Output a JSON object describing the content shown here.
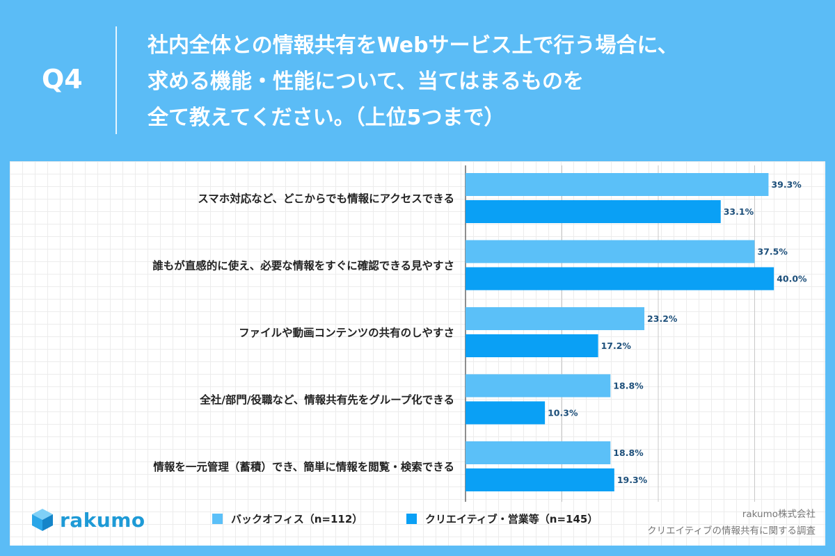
{
  "header": {
    "qnum": "Q4",
    "title_lines": [
      "社内全体との情報共有をWebサービス上で行う場合に、",
      "求める機能・性能について、当てはまるものを",
      "全て教えてください。（上位5つまで）"
    ]
  },
  "colors": {
    "background": "#5bbcf6",
    "series1": "#5bc0f8",
    "series2": "#0aa0f5",
    "value_text": "#1d4f7a"
  },
  "chart_data": {
    "type": "bar",
    "orientation": "horizontal",
    "categories": [
      "スマホ対応など、どこからでも情報にアクセスできる",
      "誰もが直感的に使え、必要な情報をすぐに確認できる見やすさ",
      "ファイルや動画コンテンツの共有のしやすさ",
      "全社/部門/役職など、情報共有先をグループ化できる",
      "情報を一元管理（蓄積）でき、簡単に情報を閲覧・検索できる"
    ],
    "series": [
      {
        "name": "バックオフィス（n=112）",
        "values": [
          39.3,
          37.5,
          23.2,
          18.8,
          18.8
        ],
        "labels": [
          "39.3%",
          "37.5%",
          "23.2%",
          "18.8%",
          "18.8%"
        ]
      },
      {
        "name": "クリエイティブ・営業等（n=145）",
        "values": [
          33.1,
          40.0,
          17.2,
          10.3,
          19.3
        ],
        "labels": [
          "33.1%",
          "40.0%",
          "17.2%",
          "10.3%",
          "19.3%"
        ]
      }
    ],
    "xlim": [
      0,
      50
    ],
    "grid": true,
    "legend_position": "bottom"
  },
  "logo": {
    "text": "rakumo"
  },
  "source": {
    "line1": "rakumo株式会社",
    "line2": "クリエイティブの情報共有に関する調査"
  }
}
